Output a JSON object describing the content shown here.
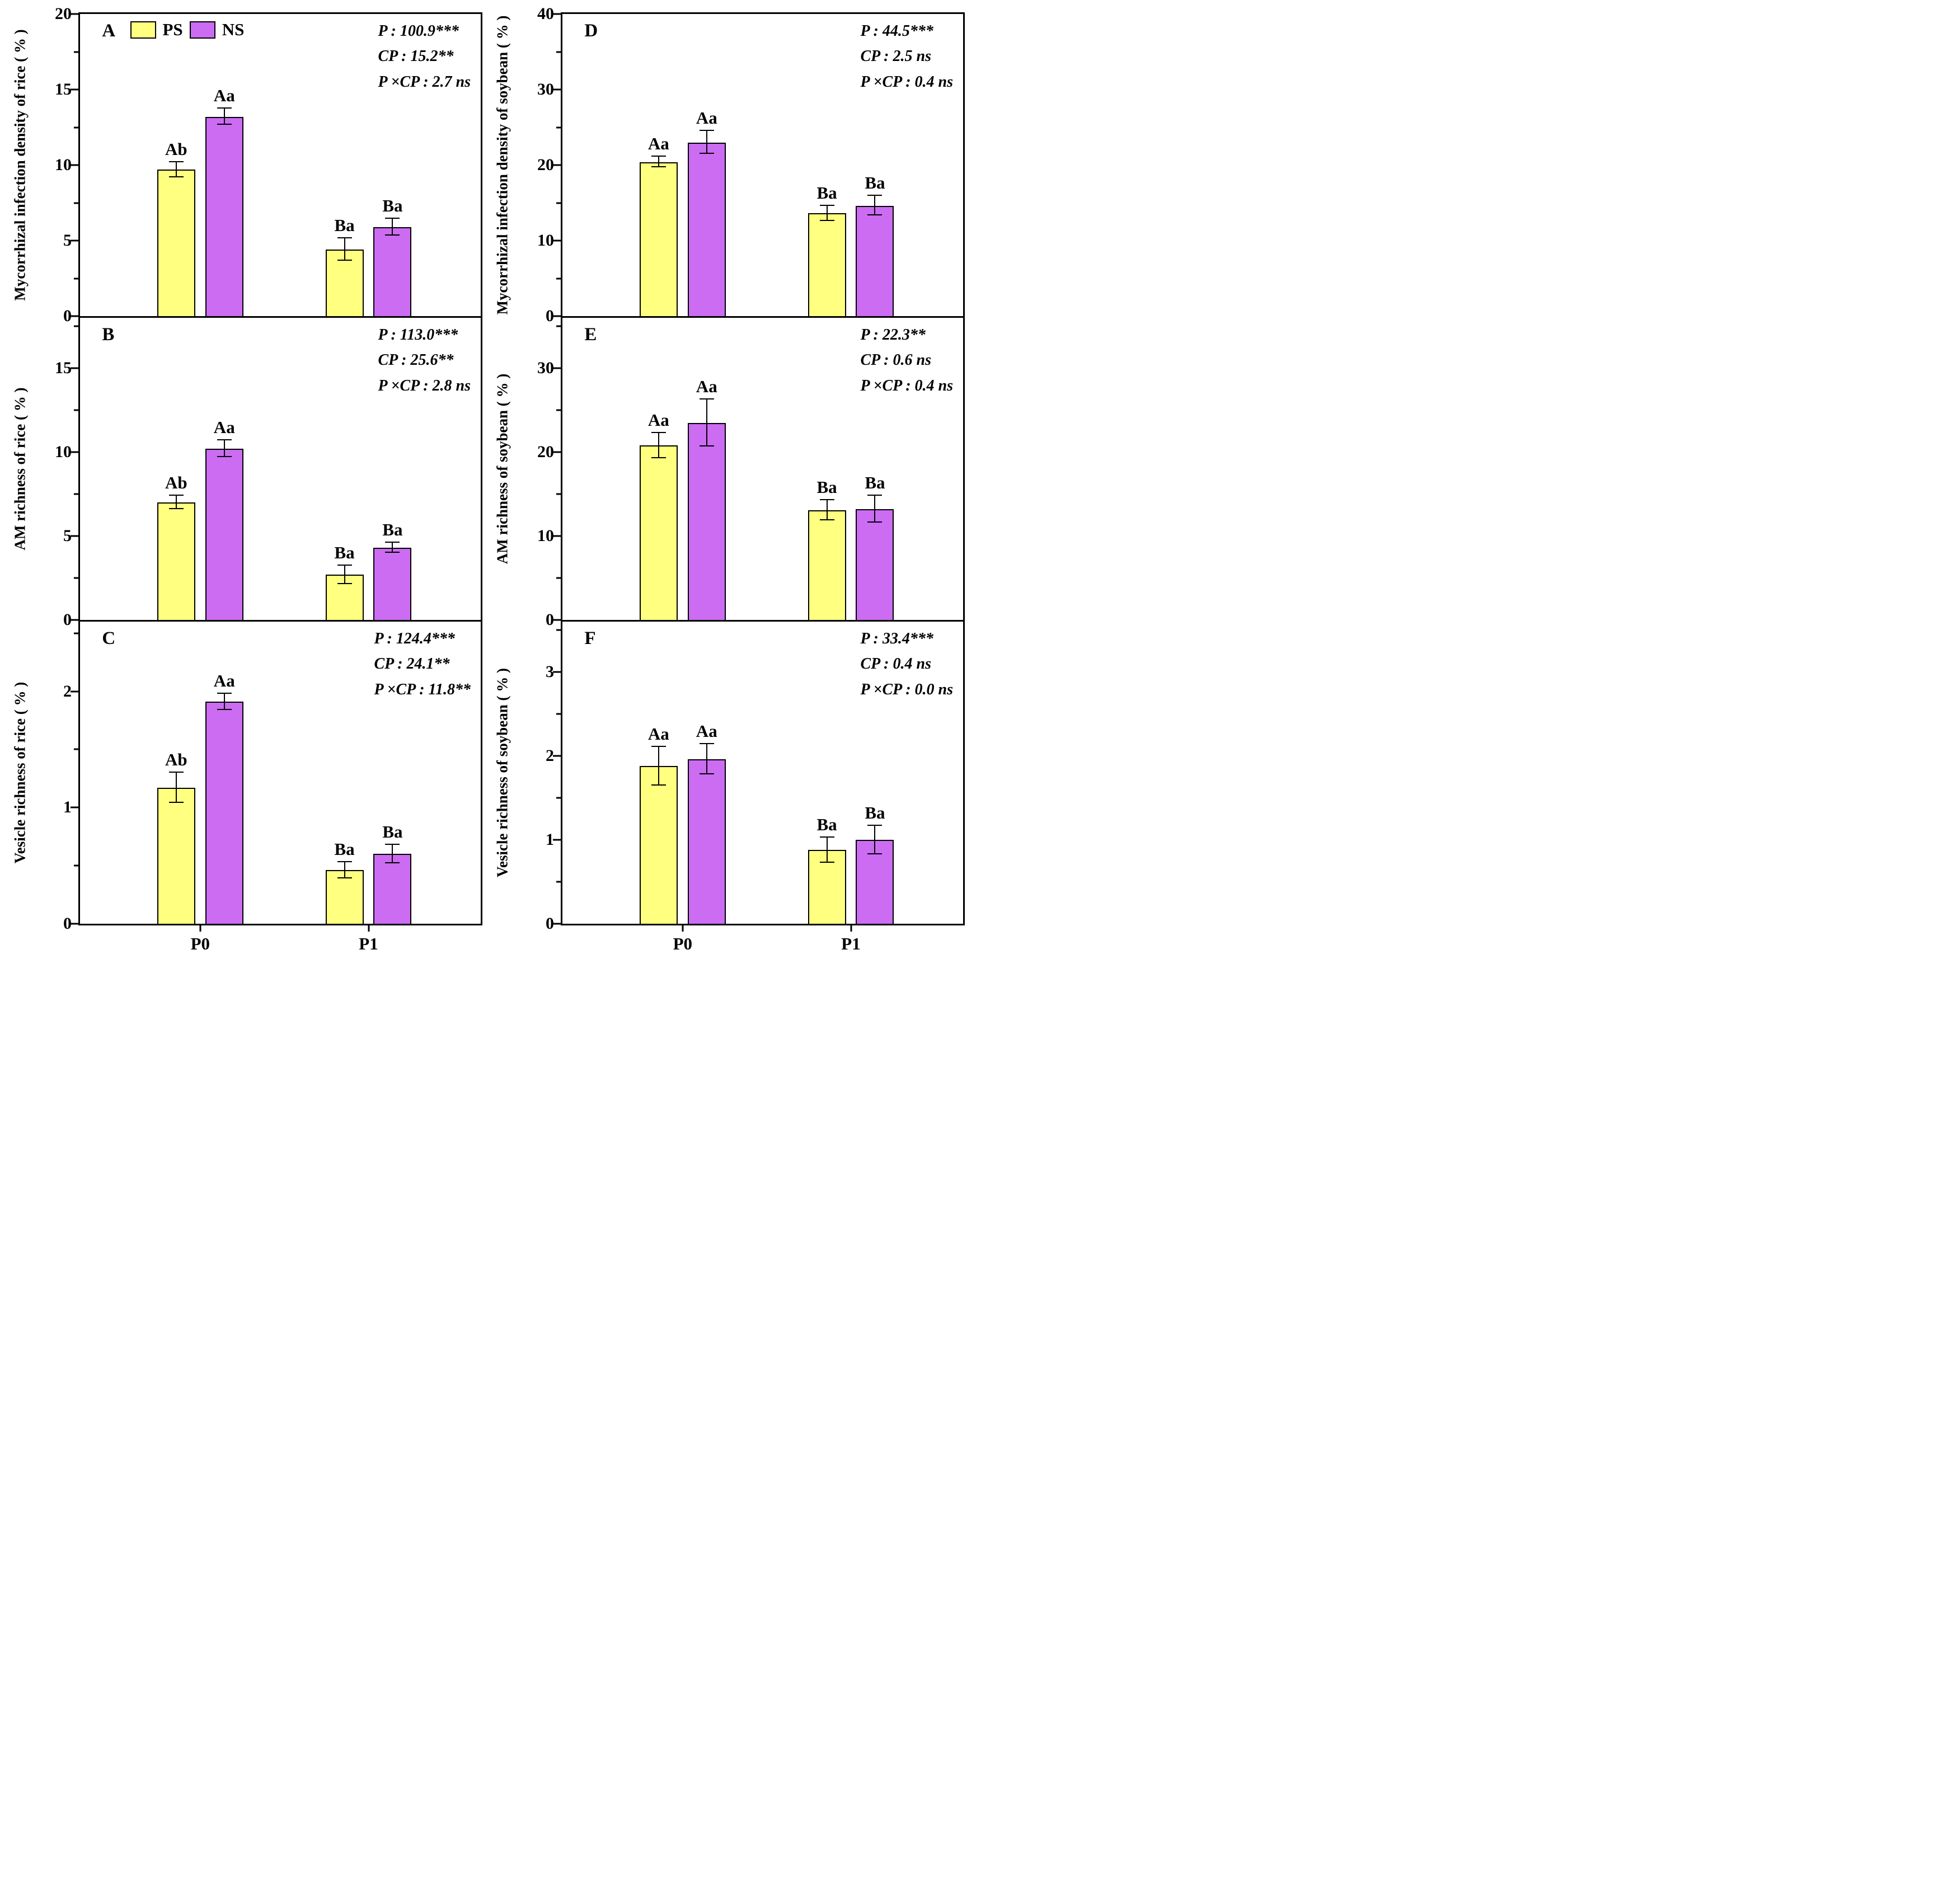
{
  "legend": {
    "items": [
      {
        "label": "PS",
        "color": "#FFFF80"
      },
      {
        "label": "NS",
        "color": "#CB6CF2"
      }
    ]
  },
  "categories": [
    "P0",
    "P1"
  ],
  "chart_data": [
    {
      "panel": "A",
      "type": "bar",
      "ylabel": "Mycorrhizal infection density of rice ( % )",
      "ylim": [
        0,
        20
      ],
      "yticks": [
        0,
        5,
        10,
        15,
        20
      ],
      "minor_ticks": [
        2.5,
        7.5,
        12.5,
        17.5
      ],
      "categories": [
        "P0",
        "P1"
      ],
      "series": [
        {
          "name": "PS",
          "values": [
            9.7,
            4.4
          ],
          "errors": [
            0.5,
            0.75
          ],
          "labels": [
            "Ab",
            "Ba"
          ]
        },
        {
          "name": "NS",
          "values": [
            13.2,
            5.9
          ],
          "errors": [
            0.55,
            0.55
          ],
          "labels": [
            "Aa",
            "Ba"
          ]
        }
      ],
      "stats": [
        "P : 100.9***",
        "CP : 15.2**",
        "P ×CP : 2.7 ns"
      ],
      "show_legend": true,
      "show_xticklabels": false
    },
    {
      "panel": "B",
      "type": "bar",
      "ylabel": "AM richness of rice ( % )",
      "ylim": [
        0,
        18
      ],
      "yticks": [
        0,
        5,
        10,
        15
      ],
      "minor_ticks": [
        2.5,
        7.5,
        12.5,
        17.5
      ],
      "categories": [
        "P0",
        "P1"
      ],
      "series": [
        {
          "name": "PS",
          "values": [
            7.0,
            2.7
          ],
          "errors": [
            0.4,
            0.55
          ],
          "labels": [
            "Ab",
            "Ba"
          ]
        },
        {
          "name": "NS",
          "values": [
            10.2,
            4.3
          ],
          "errors": [
            0.5,
            0.3
          ],
          "labels": [
            "Aa",
            "Ba"
          ]
        }
      ],
      "stats": [
        "P : 113.0***",
        "CP : 25.6**",
        "P ×CP : 2.8 ns"
      ],
      "show_legend": false,
      "show_xticklabels": false
    },
    {
      "panel": "C",
      "type": "bar",
      "ylabel": "Vesicle richness of rice ( % )",
      "ylim": [
        0,
        2.6
      ],
      "yticks": [
        0,
        1,
        2
      ],
      "minor_ticks": [
        0.5,
        1.5,
        2.5
      ],
      "categories": [
        "P0",
        "P1"
      ],
      "series": [
        {
          "name": "PS",
          "values": [
            1.17,
            0.46
          ],
          "errors": [
            0.13,
            0.07
          ],
          "labels": [
            "Ab",
            "Ba"
          ]
        },
        {
          "name": "NS",
          "values": [
            1.91,
            0.6
          ],
          "errors": [
            0.07,
            0.08
          ],
          "labels": [
            "Aa",
            "Ba"
          ]
        }
      ],
      "stats": [
        "P : 124.4***",
        "CP : 24.1**",
        "P ×CP : 11.8**"
      ],
      "show_legend": false,
      "show_xticklabels": true
    },
    {
      "panel": "D",
      "type": "bar",
      "ylabel": "Mycorrhizal infection density of soybean ( % )",
      "ylim": [
        0,
        40
      ],
      "yticks": [
        0,
        10,
        20,
        30,
        40
      ],
      "minor_ticks": [
        5,
        15,
        25,
        35
      ],
      "categories": [
        "P0",
        "P1"
      ],
      "series": [
        {
          "name": "PS",
          "values": [
            20.4,
            13.6
          ],
          "errors": [
            0.7,
            1.0
          ],
          "labels": [
            "Aa",
            "Ba"
          ]
        },
        {
          "name": "NS",
          "values": [
            23.0,
            14.6
          ],
          "errors": [
            1.5,
            1.3
          ],
          "labels": [
            "Aa",
            "Ba"
          ]
        }
      ],
      "stats": [
        "P : 44.5***",
        "CP : 2.5 ns",
        "P ×CP : 0.4 ns"
      ],
      "show_legend": false,
      "show_xticklabels": false
    },
    {
      "panel": "E",
      "type": "bar",
      "ylabel": "AM richness of soybean ( % )",
      "ylim": [
        0,
        36
      ],
      "yticks": [
        0,
        10,
        20,
        30
      ],
      "minor_ticks": [
        5,
        15,
        25,
        35
      ],
      "categories": [
        "P0",
        "P1"
      ],
      "series": [
        {
          "name": "PS",
          "values": [
            20.8,
            13.1
          ],
          "errors": [
            1.5,
            1.2
          ],
          "labels": [
            "Aa",
            "Ba"
          ]
        },
        {
          "name": "NS",
          "values": [
            23.5,
            13.2
          ],
          "errors": [
            2.8,
            1.6
          ],
          "labels": [
            "Aa",
            "Ba"
          ]
        }
      ],
      "stats": [
        "P : 22.3**",
        "CP : 0.6 ns",
        "P ×CP : 0.4 ns"
      ],
      "show_legend": false,
      "show_xticklabels": false
    },
    {
      "panel": "F",
      "type": "bar",
      "ylabel": "Vesicle richness of soybean ( % )",
      "ylim": [
        0,
        3.6
      ],
      "yticks": [
        0,
        1,
        2,
        3
      ],
      "minor_ticks": [
        0.5,
        1.5,
        2.5,
        3.5
      ],
      "categories": [
        "P0",
        "P1"
      ],
      "series": [
        {
          "name": "PS",
          "values": [
            1.88,
            0.88
          ],
          "errors": [
            0.23,
            0.15
          ],
          "labels": [
            "Aa",
            "Ba"
          ]
        },
        {
          "name": "NS",
          "values": [
            1.96,
            1.0
          ],
          "errors": [
            0.18,
            0.17
          ],
          "labels": [
            "Aa",
            "Ba"
          ]
        }
      ],
      "stats": [
        "P : 33.4***",
        "CP : 0.4 ns",
        "P ×CP : 0.0 ns"
      ],
      "show_legend": false,
      "show_xticklabels": true
    }
  ]
}
